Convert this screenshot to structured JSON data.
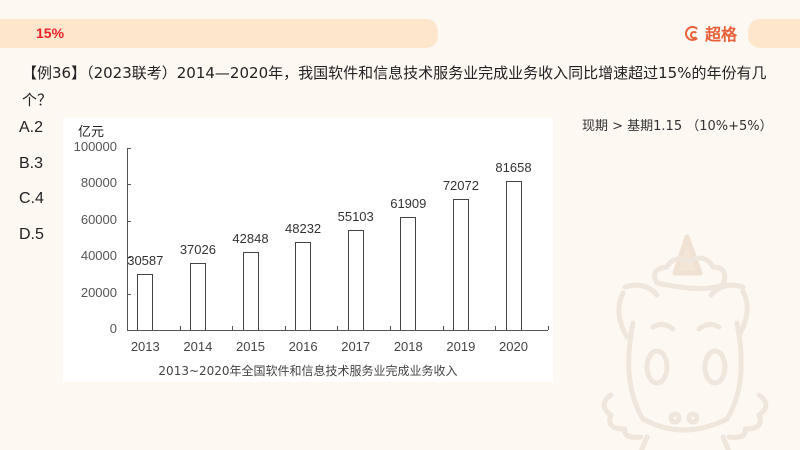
{
  "header": {
    "tag": "15%",
    "brand": "超格"
  },
  "question": {
    "text": "【例36】（2023联考）2014—2020年，我国软件和信息技术服务业完成业务收入同比增速超过15%的年份有几个？",
    "hint": "现期 > 基期1.15 （10%+5%）",
    "options": [
      {
        "label": "A.2"
      },
      {
        "label": "B.3"
      },
      {
        "label": "C.4"
      },
      {
        "label": "D.5"
      }
    ]
  },
  "chart_data": {
    "type": "bar",
    "title": "2013~2020年全国软件和信息技术服务业完成业务收入",
    "xlabel": "",
    "ylabel": "亿元",
    "categories": [
      "2013",
      "2014",
      "2015",
      "2016",
      "2017",
      "2018",
      "2019",
      "2020"
    ],
    "values": [
      30587,
      37026,
      42848,
      48232,
      55103,
      61909,
      72072,
      81658
    ],
    "yticks": [
      "100000",
      "80000",
      "60000",
      "40000",
      "20000",
      "0"
    ],
    "ylim": [
      0,
      100000
    ],
    "grid": false,
    "legend": "none",
    "bar_fill": "#ffffff",
    "bar_stroke": "#444444"
  },
  "colors": {
    "background": "#fef8f3",
    "header_strip": "#fde6cc",
    "tag": "#e8202a",
    "brand": "#e8603a"
  },
  "icons": {
    "brand_logo": "brand-logo-icon",
    "mascot": "unicorn-mascot-icon"
  }
}
